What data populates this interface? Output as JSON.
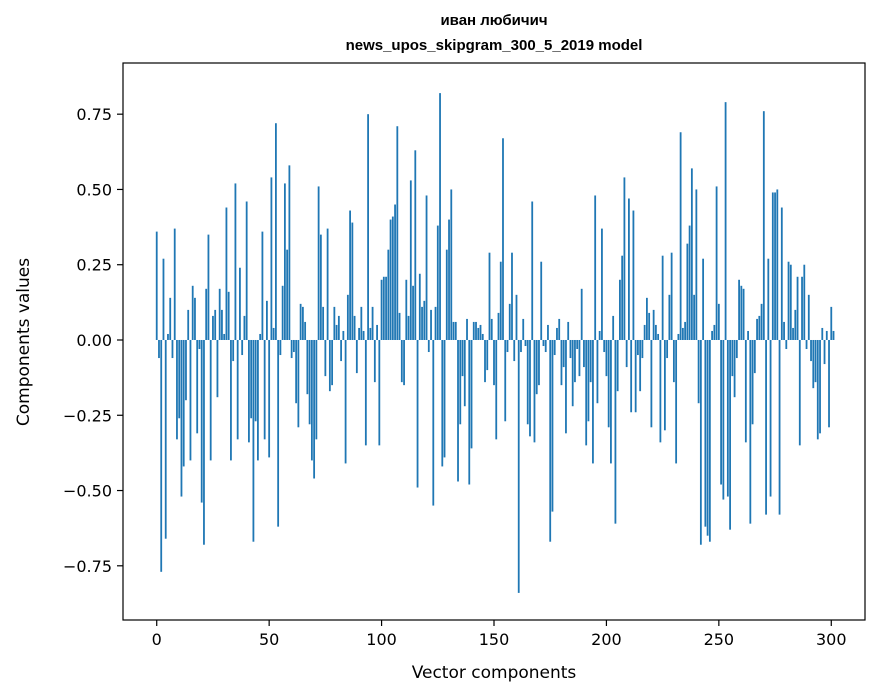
{
  "chart_data": {
    "type": "bar",
    "title": "иван любичич",
    "subtitle": "news_upos_skipgram_300_5_2019 model",
    "xlabel": "Vector components",
    "ylabel": "Components values",
    "xlim": [
      -15,
      315
    ],
    "ylim": [
      -0.93,
      0.92
    ],
    "xticks": [
      0,
      50,
      100,
      150,
      200,
      250,
      300
    ],
    "xtick_labels": [
      "0",
      "50",
      "100",
      "150",
      "200",
      "250",
      "300"
    ],
    "yticks": [
      0.75,
      0.5,
      0.25,
      0.0,
      -0.25,
      -0.5,
      -0.75
    ],
    "ytick_labels": [
      "0.75",
      "0.50",
      "0.25",
      "0.00",
      "−0.25",
      "−0.50",
      "−0.75"
    ],
    "bar_color": "#1f77b4",
    "grid": false,
    "values": [
      0.36,
      -0.06,
      -0.77,
      0.27,
      -0.66,
      0.02,
      0.14,
      -0.06,
      0.37,
      -0.33,
      -0.26,
      -0.52,
      -0.42,
      -0.2,
      0.1,
      -0.4,
      0.18,
      0.14,
      -0.31,
      -0.03,
      -0.54,
      -0.68,
      0.17,
      0.35,
      -0.4,
      0.08,
      0.1,
      -0.19,
      0.17,
      0.1,
      0.02,
      0.44,
      0.16,
      -0.4,
      -0.07,
      0.52,
      -0.33,
      0.24,
      -0.05,
      0.08,
      0.46,
      -0.34,
      -0.26,
      -0.67,
      -0.27,
      -0.4,
      0.02,
      0.36,
      -0.33,
      0.13,
      -0.39,
      0.54,
      0.04,
      0.72,
      -0.62,
      -0.05,
      0.18,
      0.52,
      0.3,
      0.58,
      -0.06,
      -0.04,
      -0.21,
      -0.29,
      0.12,
      0.11,
      0.06,
      -0.18,
      -0.28,
      -0.4,
      -0.46,
      -0.33,
      0.51,
      0.35,
      0.11,
      -0.12,
      0.37,
      -0.17,
      -0.15,
      0.11,
      0.05,
      0.08,
      -0.07,
      0.03,
      -0.41,
      0.15,
      0.43,
      0.39,
      0.08,
      -0.11,
      0.04,
      0.11,
      0.03,
      -0.35,
      0.75,
      0.04,
      0.11,
      -0.14,
      0.05,
      -0.35,
      0.2,
      0.21,
      0.21,
      0.3,
      0.4,
      0.41,
      0.45,
      0.71,
      0.09,
      -0.14,
      -0.15,
      0.2,
      0.08,
      0.53,
      0.18,
      0.63,
      -0.49,
      0.22,
      0.11,
      0.13,
      0.48,
      -0.04,
      0.1,
      -0.55,
      0.11,
      0.38,
      0.82,
      -0.42,
      -0.39,
      0.3,
      0.4,
      0.5,
      0.06,
      0.06,
      -0.47,
      -0.28,
      -0.12,
      -0.22,
      0.07,
      -0.48,
      -0.36,
      0.06,
      0.06,
      0.04,
      0.05,
      0.02,
      -0.14,
      -0.1,
      0.29,
      0.07,
      -0.15,
      -0.33,
      0.09,
      0.26,
      0.67,
      -0.27,
      -0.04,
      0.12,
      0.29,
      -0.07,
      0.15,
      -0.84,
      -0.04,
      0.07,
      -0.02,
      -0.28,
      -0.32,
      0.46,
      -0.34,
      -0.18,
      -0.15,
      0.26,
      -0.02,
      -0.04,
      0.05,
      -0.67,
      -0.57,
      -0.05,
      0.04,
      0.07,
      -0.15,
      -0.09,
      -0.31,
      0.06,
      -0.06,
      -0.22,
      -0.14,
      -0.03,
      -0.12,
      0.17,
      -0.09,
      -0.35,
      -0.27,
      -0.14,
      -0.41,
      0.48,
      -0.21,
      0.03,
      0.37,
      -0.04,
      -0.12,
      -0.29,
      -0.41,
      0.08,
      -0.61,
      -0.17,
      0.2,
      0.28,
      0.54,
      -0.09,
      0.47,
      -0.24,
      0.43,
      -0.24,
      -0.05,
      -0.17,
      -0.06,
      0.05,
      0.14,
      0.09,
      -0.29,
      0.1,
      0.05,
      0.02,
      -0.34,
      0.28,
      -0.3,
      -0.06,
      0.15,
      0.29,
      -0.14,
      -0.41,
      0.02,
      0.69,
      0.04,
      0.06,
      0.32,
      0.38,
      0.57,
      0.15,
      0.5,
      -0.21,
      -0.68,
      0.27,
      -0.62,
      -0.65,
      -0.67,
      0.03,
      0.05,
      0.51,
      0.12,
      -0.48,
      -0.53,
      0.79,
      -0.52,
      -0.63,
      -0.12,
      -0.19,
      -0.06,
      0.2,
      0.18,
      0.17,
      -0.34,
      0.03,
      -0.61,
      -0.28,
      -0.11,
      0.07,
      0.08,
      0.12,
      0.76,
      -0.58,
      0.27,
      -0.52,
      0.49,
      0.49,
      0.5,
      -0.58,
      0.44,
      0.06,
      -0.03,
      0.26,
      0.25,
      0.04,
      0.1,
      0.21,
      -0.35,
      0.21,
      0.25,
      -0.03,
      0.15,
      -0.07,
      -0.16,
      -0.14,
      -0.33,
      -0.31,
      0.04,
      -0.08,
      0.03,
      -0.29,
      0.11,
      0.03
    ]
  }
}
